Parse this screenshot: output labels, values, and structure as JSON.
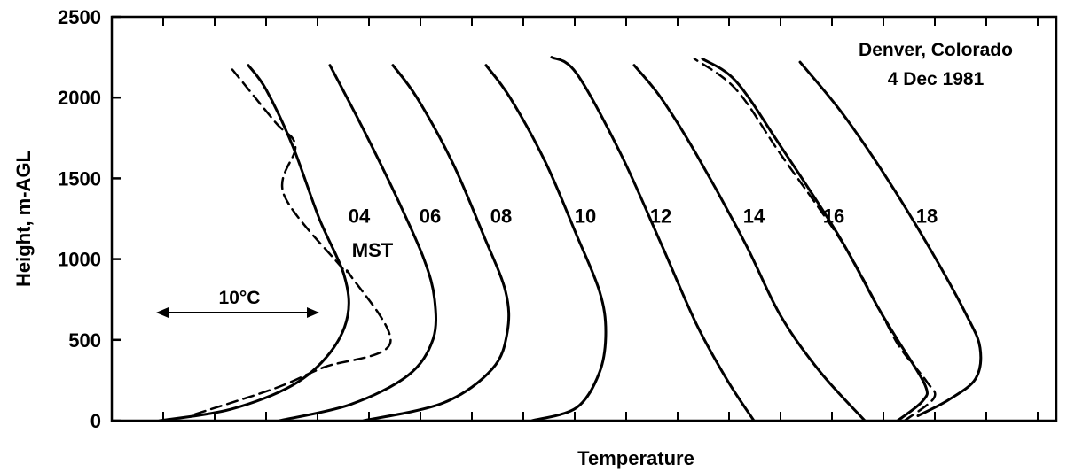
{
  "chart_data": {
    "type": "line",
    "ylabel": "Height, m-AGL",
    "xlabel": "Temperature",
    "ylim": [
      0,
      2500
    ],
    "y_ticks": [
      "0",
      "500",
      "1000",
      "1500",
      "2000",
      "2500"
    ],
    "grid": false,
    "legend": "none",
    "annotation_title": [
      "Denver, Colorado",
      "4 Dec 1981"
    ],
    "scale_annotation": "10°C",
    "time_unit_label": "MST",
    "series": [
      {
        "name": "04",
        "style": "solid",
        "label_at": [
          405,
          1270
        ],
        "points": [
          [
            180,
            0
          ],
          [
            260,
            70
          ],
          [
            330,
            220
          ],
          [
            372,
            420
          ],
          [
            392,
            650
          ],
          [
            388,
            900
          ],
          [
            360,
            1250
          ],
          [
            330,
            1700
          ],
          [
            300,
            2050
          ],
          [
            280,
            2200
          ]
        ]
      },
      {
        "name": "04",
        "style": "dashed",
        "points": [
          [
            220,
            40
          ],
          [
            310,
            200
          ],
          [
            365,
            330
          ],
          [
            440,
            480
          ],
          [
            395,
            900
          ],
          [
            385,
            950
          ],
          [
            320,
            1400
          ],
          [
            333,
            1700
          ],
          [
            310,
            1850
          ],
          [
            258,
            2200
          ]
        ]
      },
      {
        "name": "06",
        "style": "solid",
        "label_at": [
          485,
          1270
        ],
        "points": [
          [
            315,
            0
          ],
          [
            395,
            100
          ],
          [
            460,
            280
          ],
          [
            488,
            500
          ],
          [
            490,
            750
          ],
          [
            478,
            1000
          ],
          [
            450,
            1350
          ],
          [
            410,
            1800
          ],
          [
            372,
            2200
          ]
        ]
      },
      {
        "name": "08",
        "style": "solid",
        "label_at": [
          565,
          1270
        ],
        "points": [
          [
            410,
            0
          ],
          [
            500,
            110
          ],
          [
            555,
            320
          ],
          [
            572,
            550
          ],
          [
            570,
            800
          ],
          [
            545,
            1150
          ],
          [
            510,
            1600
          ],
          [
            470,
            2000
          ],
          [
            443,
            2200
          ]
        ]
      },
      {
        "name": "10",
        "style": "solid",
        "label_at": [
          660,
          1270
        ],
        "points": [
          [
            600,
            0
          ],
          [
            650,
            80
          ],
          [
            676,
            300
          ],
          [
            683,
            550
          ],
          [
            676,
            800
          ],
          [
            650,
            1150
          ],
          [
            615,
            1600
          ],
          [
            575,
            2000
          ],
          [
            548,
            2200
          ]
        ]
      },
      {
        "name": "12",
        "style": "solid",
        "label_at": [
          745,
          1270
        ],
        "points": [
          [
            850,
            0
          ],
          [
            820,
            250
          ],
          [
            785,
            600
          ],
          [
            745,
            1100
          ],
          [
            700,
            1650
          ],
          [
            650,
            2150
          ],
          [
            622,
            2250
          ]
        ]
      },
      {
        "name": "14",
        "style": "solid",
        "label_at": [
          850,
          1270
        ],
        "points": [
          [
            975,
            0
          ],
          [
            925,
            300
          ],
          [
            880,
            650
          ],
          [
            840,
            1100
          ],
          [
            785,
            1650
          ],
          [
            745,
            2000
          ],
          [
            715,
            2200
          ]
        ]
      },
      {
        "name": "16",
        "style": "solid",
        "label_at": [
          940,
          1270
        ],
        "points": [
          [
            1012,
            0
          ],
          [
            1040,
            120
          ],
          [
            1043,
            220
          ],
          [
            1012,
            500
          ],
          [
            990,
            700
          ],
          [
            945,
            1150
          ],
          [
            880,
            1700
          ],
          [
            830,
            2100
          ],
          [
            792,
            2240
          ]
        ]
      },
      {
        "name": "16",
        "style": "dashed",
        "points": [
          [
            1020,
            0
          ],
          [
            1053,
            140
          ],
          [
            1045,
            240
          ],
          [
            1015,
            450
          ],
          [
            995,
            650
          ],
          [
            950,
            1100
          ],
          [
            880,
            1650
          ],
          [
            830,
            2050
          ],
          [
            783,
            2240
          ]
        ]
      },
      {
        "name": "18",
        "style": "solid",
        "label_at": [
          1045,
          1270
        ],
        "points": [
          [
            1035,
            30
          ],
          [
            1070,
            130
          ],
          [
            1100,
            260
          ],
          [
            1105,
            450
          ],
          [
            1090,
            650
          ],
          [
            1050,
            1050
          ],
          [
            1000,
            1500
          ],
          [
            950,
            1900
          ],
          [
            902,
            2220
          ]
        ]
      }
    ]
  }
}
